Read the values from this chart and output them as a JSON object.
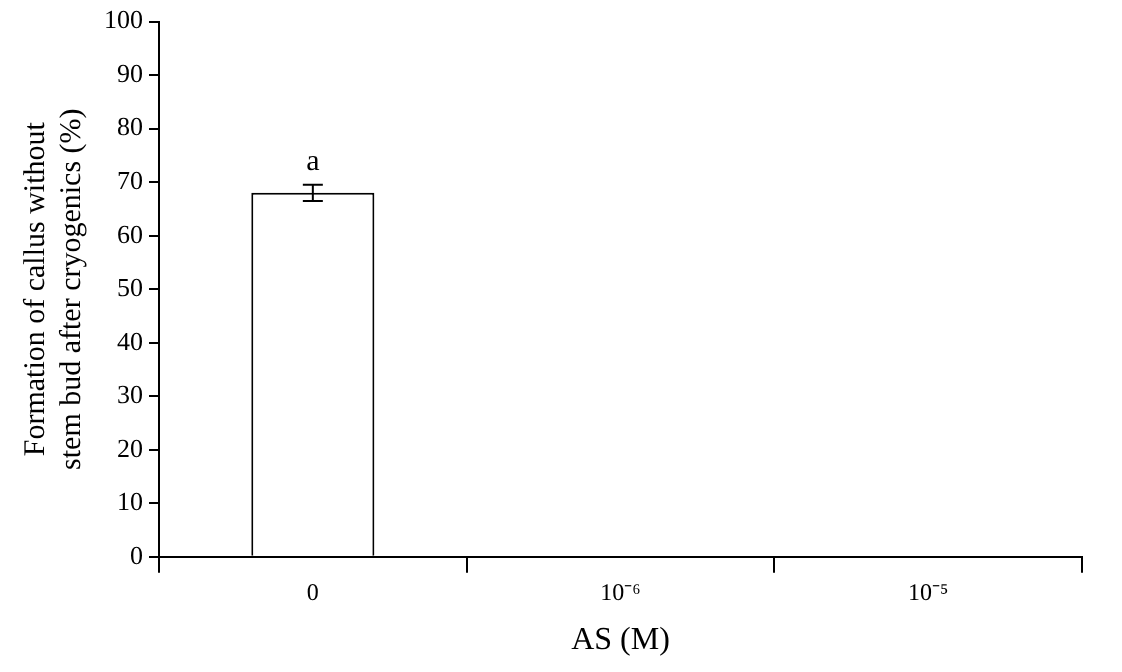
{
  "chart_data": {
    "type": "bar",
    "xlabel": "AS (M)",
    "ylabel": "Formation of callus without stem bud after cryogenics (%)",
    "categories": [
      "0",
      "10⁻⁶",
      "10⁻⁵"
    ],
    "values": [
      68,
      0,
      0
    ],
    "errors": [
      1.5,
      null,
      null
    ],
    "color": "#ffffff",
    "ylim": [
      0,
      100
    ],
    "yticks": [
      0,
      10,
      20,
      30,
      40,
      50,
      60,
      70,
      80,
      90,
      100
    ],
    "grid": false,
    "legend": false,
    "annotations": [
      {
        "text": "a",
        "x": "0",
        "y": 71
      }
    ]
  }
}
